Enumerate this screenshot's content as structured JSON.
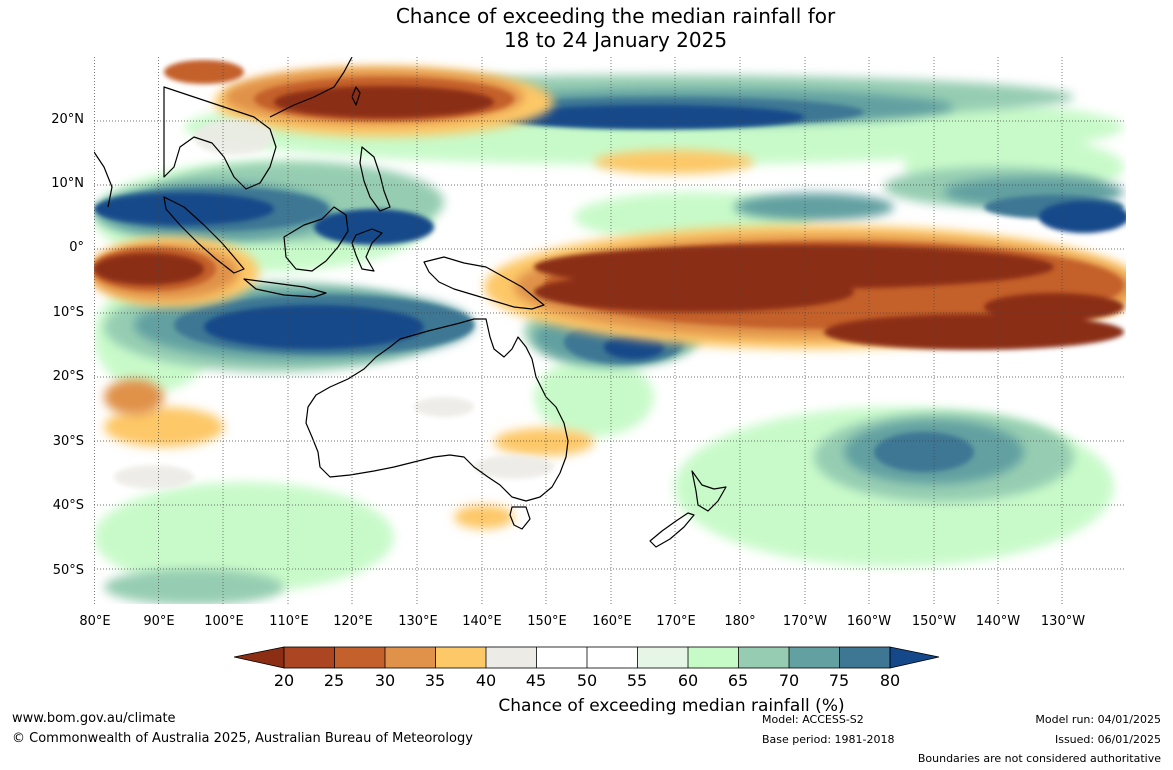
{
  "title_line1": "Chance of exceeding the median rainfall for",
  "title_line2": "18 to 24 January 2025",
  "lat_labels": [
    "20°N",
    "10°N",
    "0°",
    "10°S",
    "20°S",
    "30°S",
    "40°S",
    "50°S"
  ],
  "lon_labels": [
    "80°E",
    "90°E",
    "100°E",
    "110°E",
    "120°E",
    "130°E",
    "140°E",
    "150°E",
    "160°E",
    "170°E",
    "180°",
    "170°W",
    "160°W",
    "150°W",
    "140°W",
    "130°W"
  ],
  "colorbar": {
    "labels": [
      "20",
      "25",
      "30",
      "35",
      "40",
      "45",
      "50",
      "55",
      "60",
      "65",
      "70",
      "75",
      "80"
    ],
    "colors": [
      "#8b2e14",
      "#ab4522",
      "#c4602c",
      "#e0924a",
      "#fdc868",
      "#ecebe6",
      "#ffffff",
      "#ffffff",
      "#e6f6e6",
      "#c6fac7",
      "#96cdb2",
      "#62a0a1",
      "#3d7794",
      "#14488a"
    ],
    "title": "Chance of exceeding median rainfall (%)"
  },
  "footer": {
    "url": "www.bom.gov.au/climate",
    "copyright": "© Commonwealth of Australia 2025, Australian Bureau of Meteorology",
    "model": "Model: ACCESS-S2",
    "base_period": "Base period: 1981-2018",
    "model_run": "Model run: 04/01/2025",
    "issued": "Issued: 06/01/2025",
    "disclaimer": "Boundaries are not considered authoritative"
  }
}
